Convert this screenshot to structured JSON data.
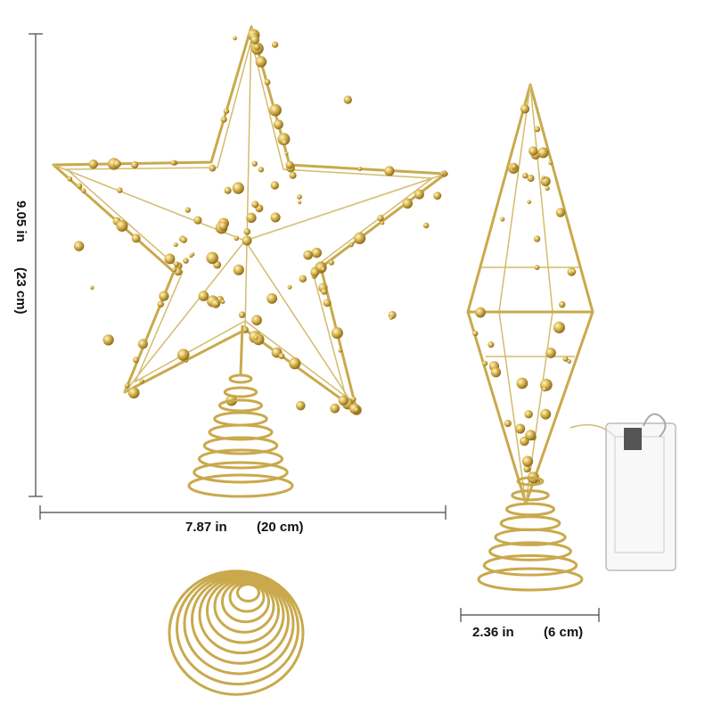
{
  "dimensions": {
    "height": {
      "inches": "9.05 in",
      "cm": "(23 cm)"
    },
    "width": {
      "inches": "7.87 in",
      "cm": "(20 cm)"
    },
    "side_width": {
      "inches": "2.36 in",
      "cm": "(6 cm)"
    }
  }
}
